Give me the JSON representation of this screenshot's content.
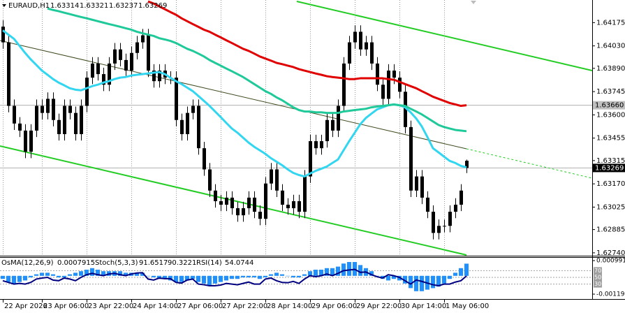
{
  "chart_data": [
    {
      "type": "candlestick",
      "title": "EURAUD,H1",
      "categories": [
        "22 Apr 2026",
        null,
        null,
        null,
        null,
        null,
        null,
        "23 Apr 06:00",
        null,
        null,
        null,
        null,
        null,
        null,
        null,
        "23 Apr 22:00",
        null,
        null,
        null,
        null,
        null,
        null,
        null,
        "24 Apr 14:00",
        null,
        null,
        null,
        null,
        null,
        null,
        null,
        "27 Apr 06:00",
        null,
        null,
        null,
        null,
        null,
        null,
        null,
        "27 Apr 22:00",
        null,
        null,
        null,
        null,
        null,
        null,
        null,
        "28 Apr 14:00",
        null,
        null,
        null,
        null,
        null,
        null,
        null,
        "29 Apr 06:00",
        null,
        null,
        null,
        null,
        null,
        null,
        null,
        "29 Apr 22:00",
        null,
        null,
        null,
        null,
        null,
        null,
        null,
        "30 Apr 14:00",
        null,
        null,
        null,
        null,
        null,
        null,
        null,
        "1 May 06:00",
        null,
        null,
        null,
        null
      ],
      "open": [
        1.6415,
        1.64052,
        1.63656,
        1.63546,
        1.63502,
        1.6337,
        1.63502,
        1.63656,
        1.63612,
        1.637,
        1.63568,
        1.6348,
        1.63656,
        1.63612,
        1.6348,
        1.63656,
        1.63832,
        1.6392,
        1.63854,
        1.63788,
        1.6392,
        1.64008,
        1.63942,
        1.63876,
        1.63986,
        1.64052,
        1.64096,
        1.63876,
        1.6381,
        1.63876,
        1.63832,
        1.63832,
        1.63568,
        1.6348,
        1.63612,
        1.63656,
        1.63392,
        1.6326,
        1.63128,
        1.63062,
        1.6304,
        1.63084,
        1.63018,
        1.62974,
        1.63018,
        1.63084,
        1.62996,
        1.62952,
        1.63172,
        1.6326,
        1.63128,
        1.6304,
        1.63018,
        1.63062,
        1.62996,
        1.63216,
        1.63436,
        1.63392,
        1.63436,
        1.63568,
        1.63502,
        1.63656,
        1.6392,
        1.64052,
        1.64118,
        1.64008,
        1.64052,
        1.6392,
        1.63788,
        1.637,
        1.63876,
        1.63832,
        1.63744,
        1.63524,
        1.63128,
        1.63216,
        1.63084,
        1.62996,
        1.62864,
        1.62908,
        1.62908,
        1.62996,
        1.6304,
        1.63314
      ],
      "high": [
        1.6419,
        1.64092,
        1.63696,
        1.63586,
        1.63542,
        1.63542,
        1.63696,
        1.63696,
        1.6374,
        1.6374,
        1.63608,
        1.63696,
        1.63696,
        1.63652,
        1.63696,
        1.63872,
        1.6396,
        1.6396,
        1.63894,
        1.6396,
        1.64048,
        1.64048,
        1.63982,
        1.64026,
        1.64092,
        1.64136,
        1.64136,
        1.63916,
        1.63916,
        1.63916,
        1.63872,
        1.63872,
        1.63608,
        1.63652,
        1.63696,
        1.63696,
        1.63432,
        1.633,
        1.63168,
        1.63102,
        1.63124,
        1.63124,
        1.63058,
        1.63058,
        1.63124,
        1.63124,
        1.63036,
        1.63212,
        1.633,
        1.633,
        1.63168,
        1.6308,
        1.63102,
        1.63102,
        1.63256,
        1.63476,
        1.63476,
        1.63476,
        1.63608,
        1.63608,
        1.63696,
        1.6396,
        1.64092,
        1.64158,
        1.64158,
        1.64092,
        1.64092,
        1.6396,
        1.63828,
        1.63916,
        1.63916,
        1.63872,
        1.63784,
        1.63564,
        1.63256,
        1.63256,
        1.63124,
        1.63036,
        1.62948,
        1.62948,
        1.63036,
        1.6308,
        1.63168,
        1.63321
      ],
      "low": [
        1.64012,
        1.63616,
        1.63506,
        1.63462,
        1.6333,
        1.6333,
        1.63462,
        1.63572,
        1.63572,
        1.63528,
        1.6344,
        1.6344,
        1.63572,
        1.6344,
        1.6344,
        1.63616,
        1.63792,
        1.63814,
        1.63748,
        1.63748,
        1.6388,
        1.63902,
        1.63836,
        1.63836,
        1.63946,
        1.64012,
        1.63836,
        1.6377,
        1.6377,
        1.63792,
        1.63792,
        1.63528,
        1.6344,
        1.6344,
        1.63572,
        1.63352,
        1.6322,
        1.63088,
        1.63022,
        1.63,
        1.63,
        1.62978,
        1.62934,
        1.62934,
        1.62978,
        1.62956,
        1.62912,
        1.62912,
        1.63132,
        1.63088,
        1.63,
        1.62978,
        1.62978,
        1.62956,
        1.62956,
        1.63176,
        1.63352,
        1.63352,
        1.63396,
        1.63462,
        1.63462,
        1.63616,
        1.6388,
        1.64012,
        1.63968,
        1.63968,
        1.6388,
        1.63748,
        1.6366,
        1.6366,
        1.63792,
        1.63704,
        1.63484,
        1.63088,
        1.63088,
        1.63044,
        1.62956,
        1.62824,
        1.62824,
        1.62868,
        1.62868,
        1.62956,
        1.63,
        1.63237
      ],
      "close": [
        1.64052,
        1.63656,
        1.63546,
        1.63502,
        1.6337,
        1.63502,
        1.63656,
        1.63612,
        1.637,
        1.63568,
        1.6348,
        1.63656,
        1.63612,
        1.6348,
        1.63656,
        1.63832,
        1.6392,
        1.63854,
        1.63788,
        1.6392,
        1.64008,
        1.63942,
        1.63876,
        1.63986,
        1.64052,
        1.64096,
        1.63876,
        1.6381,
        1.63876,
        1.63832,
        1.63832,
        1.63568,
        1.6348,
        1.63612,
        1.63656,
        1.63392,
        1.6326,
        1.63128,
        1.63062,
        1.6304,
        1.63084,
        1.63018,
        1.62974,
        1.63018,
        1.63084,
        1.62996,
        1.62952,
        1.63172,
        1.6326,
        1.63128,
        1.6304,
        1.63018,
        1.63062,
        1.62996,
        1.63216,
        1.63436,
        1.63392,
        1.63436,
        1.63568,
        1.63502,
        1.63656,
        1.6392,
        1.64052,
        1.64118,
        1.64008,
        1.64052,
        1.6392,
        1.63788,
        1.637,
        1.63876,
        1.63832,
        1.63744,
        1.63524,
        1.63128,
        1.63216,
        1.63084,
        1.62996,
        1.62864,
        1.62908,
        1.62908,
        1.62996,
        1.6304,
        1.63128,
        1.63269
      ],
      "candle_color": "#000000",
      "series": [
        {
          "color": "#33d6f0",
          "values": [
            1.64127,
            1.641,
            1.64074,
            1.6403,
            1.63986,
            1.63946,
            1.63911,
            1.63876,
            1.6385,
            1.63823,
            1.63801,
            1.63784,
            1.63766,
            1.63757,
            1.63753,
            1.63766,
            1.63779,
            1.63788,
            1.63801,
            1.6381,
            1.63823,
            1.63832,
            1.63836,
            1.63845,
            1.6385,
            1.63854,
            1.63858,
            1.63863,
            1.63867,
            1.63854,
            1.63832,
            1.6381,
            1.63792,
            1.6377,
            1.63748,
            1.63718,
            1.63687,
            1.63656,
            1.63621,
            1.63586,
            1.6355,
            1.63515,
            1.63489,
            1.63458,
            1.63427,
            1.63401,
            1.63379,
            1.63357,
            1.6333,
            1.63308,
            1.63286,
            1.6326,
            1.63238,
            1.63225,
            1.63216,
            1.63234,
            1.63251,
            1.63264,
            1.63278,
            1.633,
            1.63322,
            1.63379,
            1.63436,
            1.63489,
            1.63542,
            1.63581,
            1.63608,
            1.63634,
            1.63647,
            1.6366,
            1.63665,
            1.6366,
            1.63647,
            1.63616,
            1.63577,
            1.63528,
            1.63462,
            1.63392,
            1.63366,
            1.63339,
            1.63313,
            1.633,
            1.63282,
            1.63273
          ]
        },
        {
          "color": "#20c99a",
          "values": [
            null,
            null,
            null,
            null,
            null,
            null,
            null,
            null,
            1.64263,
            1.64254,
            1.64246,
            1.64237,
            1.64228,
            1.64219,
            1.6421,
            1.64202,
            1.64193,
            1.64184,
            1.64175,
            1.64166,
            1.64158,
            1.64149,
            1.6414,
            1.64131,
            1.64118,
            1.64109,
            1.641,
            1.64092,
            1.64078,
            1.6407,
            1.64061,
            1.64048,
            1.6403,
            1.64012,
            1.63999,
            1.63982,
            1.63964,
            1.63942,
            1.63924,
            1.63907,
            1.63889,
            1.63872,
            1.63854,
            1.63836,
            1.63814,
            1.63792,
            1.6377,
            1.63748,
            1.63731,
            1.63709,
            1.63691,
            1.63669,
            1.63647,
            1.6363,
            1.63621,
            1.63621,
            1.63616,
            1.63616,
            1.63612,
            1.63612,
            1.63612,
            1.63621,
            1.63625,
            1.6363,
            1.63634,
            1.63638,
            1.63647,
            1.63652,
            1.63656,
            1.6366,
            1.63665,
            1.6366,
            1.63656,
            1.63638,
            1.63621,
            1.63603,
            1.63581,
            1.63559,
            1.63537,
            1.63524,
            1.63515,
            1.63506,
            1.63502,
            1.63498
          ]
        },
        {
          "color": "#e00000",
          "values": [
            null,
            null,
            null,
            null,
            null,
            null,
            null,
            null,
            null,
            null,
            null,
            null,
            null,
            null,
            null,
            null,
            null,
            null,
            null,
            null,
            null,
            null,
            null,
            null,
            null,
            null,
            1.64307,
            1.64294,
            1.64276,
            1.64259,
            1.64241,
            1.64224,
            1.64202,
            1.64184,
            1.64166,
            1.64149,
            1.64131,
            1.64118,
            1.641,
            1.64083,
            1.64065,
            1.64048,
            1.6403,
            1.64012,
            1.63999,
            1.63982,
            1.63964,
            1.63951,
            1.63938,
            1.63924,
            1.63916,
            1.63907,
            1.63898,
            1.63885,
            1.63876,
            1.63867,
            1.63858,
            1.6385,
            1.63841,
            1.63836,
            1.63832,
            1.63828,
            1.63823,
            1.63823,
            1.63828,
            1.63828,
            1.63828,
            1.63828,
            1.63828,
            1.63823,
            1.63819,
            1.63806,
            1.63792,
            1.63779,
            1.63766,
            1.63748,
            1.63731,
            1.63713,
            1.637,
            1.63687,
            1.63674,
            1.63665,
            1.63656,
            1.6366
          ]
        }
      ],
      "price_labels": [
        {
          "value": 1.6366,
          "label": "1.63660",
          "color": "#c0c0c0"
        },
        {
          "value": 1.63269,
          "label": "1.63269",
          "color": "#000000"
        }
      ],
      "ylim": [
        1.62722,
        1.64316
      ],
      "yticks": [
        1.64175,
        {
          "value": 1.6403,
          "label": "1.64030"
        },
        {
          "value": 1.6389,
          "label": "1.63890"
        },
        1.63745,
        {
          "value": 1.636,
          "label": "1.63600"
        },
        1.63455,
        1.63315,
        {
          "value": 1.6317,
          "label": "1.63170"
        },
        1.63025,
        1.62885,
        {
          "value": 1.6274,
          "label": "1.62740"
        }
      ],
      "grid": true
    },
    {
      "type": "oscillator",
      "osma": {
        "name": "OsMA(12,26,9)",
        "color": "#1e90ff",
        "values": [
          -0.0002,
          -0.0004,
          -0.0005,
          -0.0004,
          -0.0003,
          -0.0001,
          0.0001,
          0.0002,
          0.0002,
          0.0001,
          -0.0001,
          -0.0001,
          0.0001,
          0.0002,
          0.0003,
          0.0004,
          0.0005,
          0.0004,
          0.0003,
          0.0003,
          0.0003,
          0.0003,
          0.0002,
          0.0002,
          0.0002,
          0.0002,
          0,
          -0.0001,
          -0.0002,
          -0.0002,
          -0.0003,
          -0.0004,
          -0.0004,
          -0.0003,
          -0.0002,
          -0.0004,
          -0.0005,
          -0.0006,
          -0.0005,
          -0.0004,
          -0.0003,
          -0.0002,
          -0.0002,
          -0.0001,
          -0.0001,
          -0.0001,
          -0.0002,
          -0.0001,
          0.0001,
          0.0002,
          0.0001,
          0,
          -0.0001,
          -0.0001,
          0.0001,
          0.0003,
          0.0004,
          0.0004,
          0.0005,
          0.0005,
          0.0006,
          0.0008,
          0.0009,
          0.0009,
          0.0007,
          0.0005,
          0.0003,
          0,
          -0.0002,
          -0.0003,
          -0.0002,
          -0.0003,
          -0.0005,
          -0.0008,
          -0.001,
          -0.001,
          -0.0009,
          -0.0008,
          -0.0007,
          -0.0005,
          -0.0002,
          0.0002,
          0.0005,
          0.0007915
        ]
      },
      "stoch": {
        "name": "Stoch(5,3,3)",
        "values": [
          91.6517,
          90.3221
        ]
      },
      "rsi": {
        "name": "RSI(14)",
        "color": "#000080",
        "axis": "y2",
        "values": [
          40,
          35,
          30,
          32,
          30,
          35,
          45,
          48,
          50,
          42,
          40,
          48,
          45,
          40,
          50,
          58,
          62,
          58,
          55,
          60,
          62,
          58,
          55,
          60,
          63,
          64,
          45,
          42,
          48,
          46,
          46,
          35,
          33,
          42,
          45,
          30,
          28,
          25,
          25,
          27,
          32,
          30,
          28,
          32,
          36,
          30,
          30,
          45,
          48,
          40,
          35,
          34,
          38,
          32,
          45,
          55,
          52,
          55,
          60,
          55,
          62,
          70,
          72,
          74,
          65,
          66,
          58,
          52,
          48,
          58,
          55,
          50,
          40,
          30,
          42,
          38,
          33,
          28,
          25,
          30,
          30,
          36,
          40,
          54.0744
        ]
      },
      "ylim": [
        -0.001191,
        0.000991
      ],
      "yticks": [
        0.000991,
        -0.001191
      ],
      "y2lim": [
        0,
        100
      ],
      "y2ticks": [
        70,
        50,
        30
      ]
    }
  ]
}
